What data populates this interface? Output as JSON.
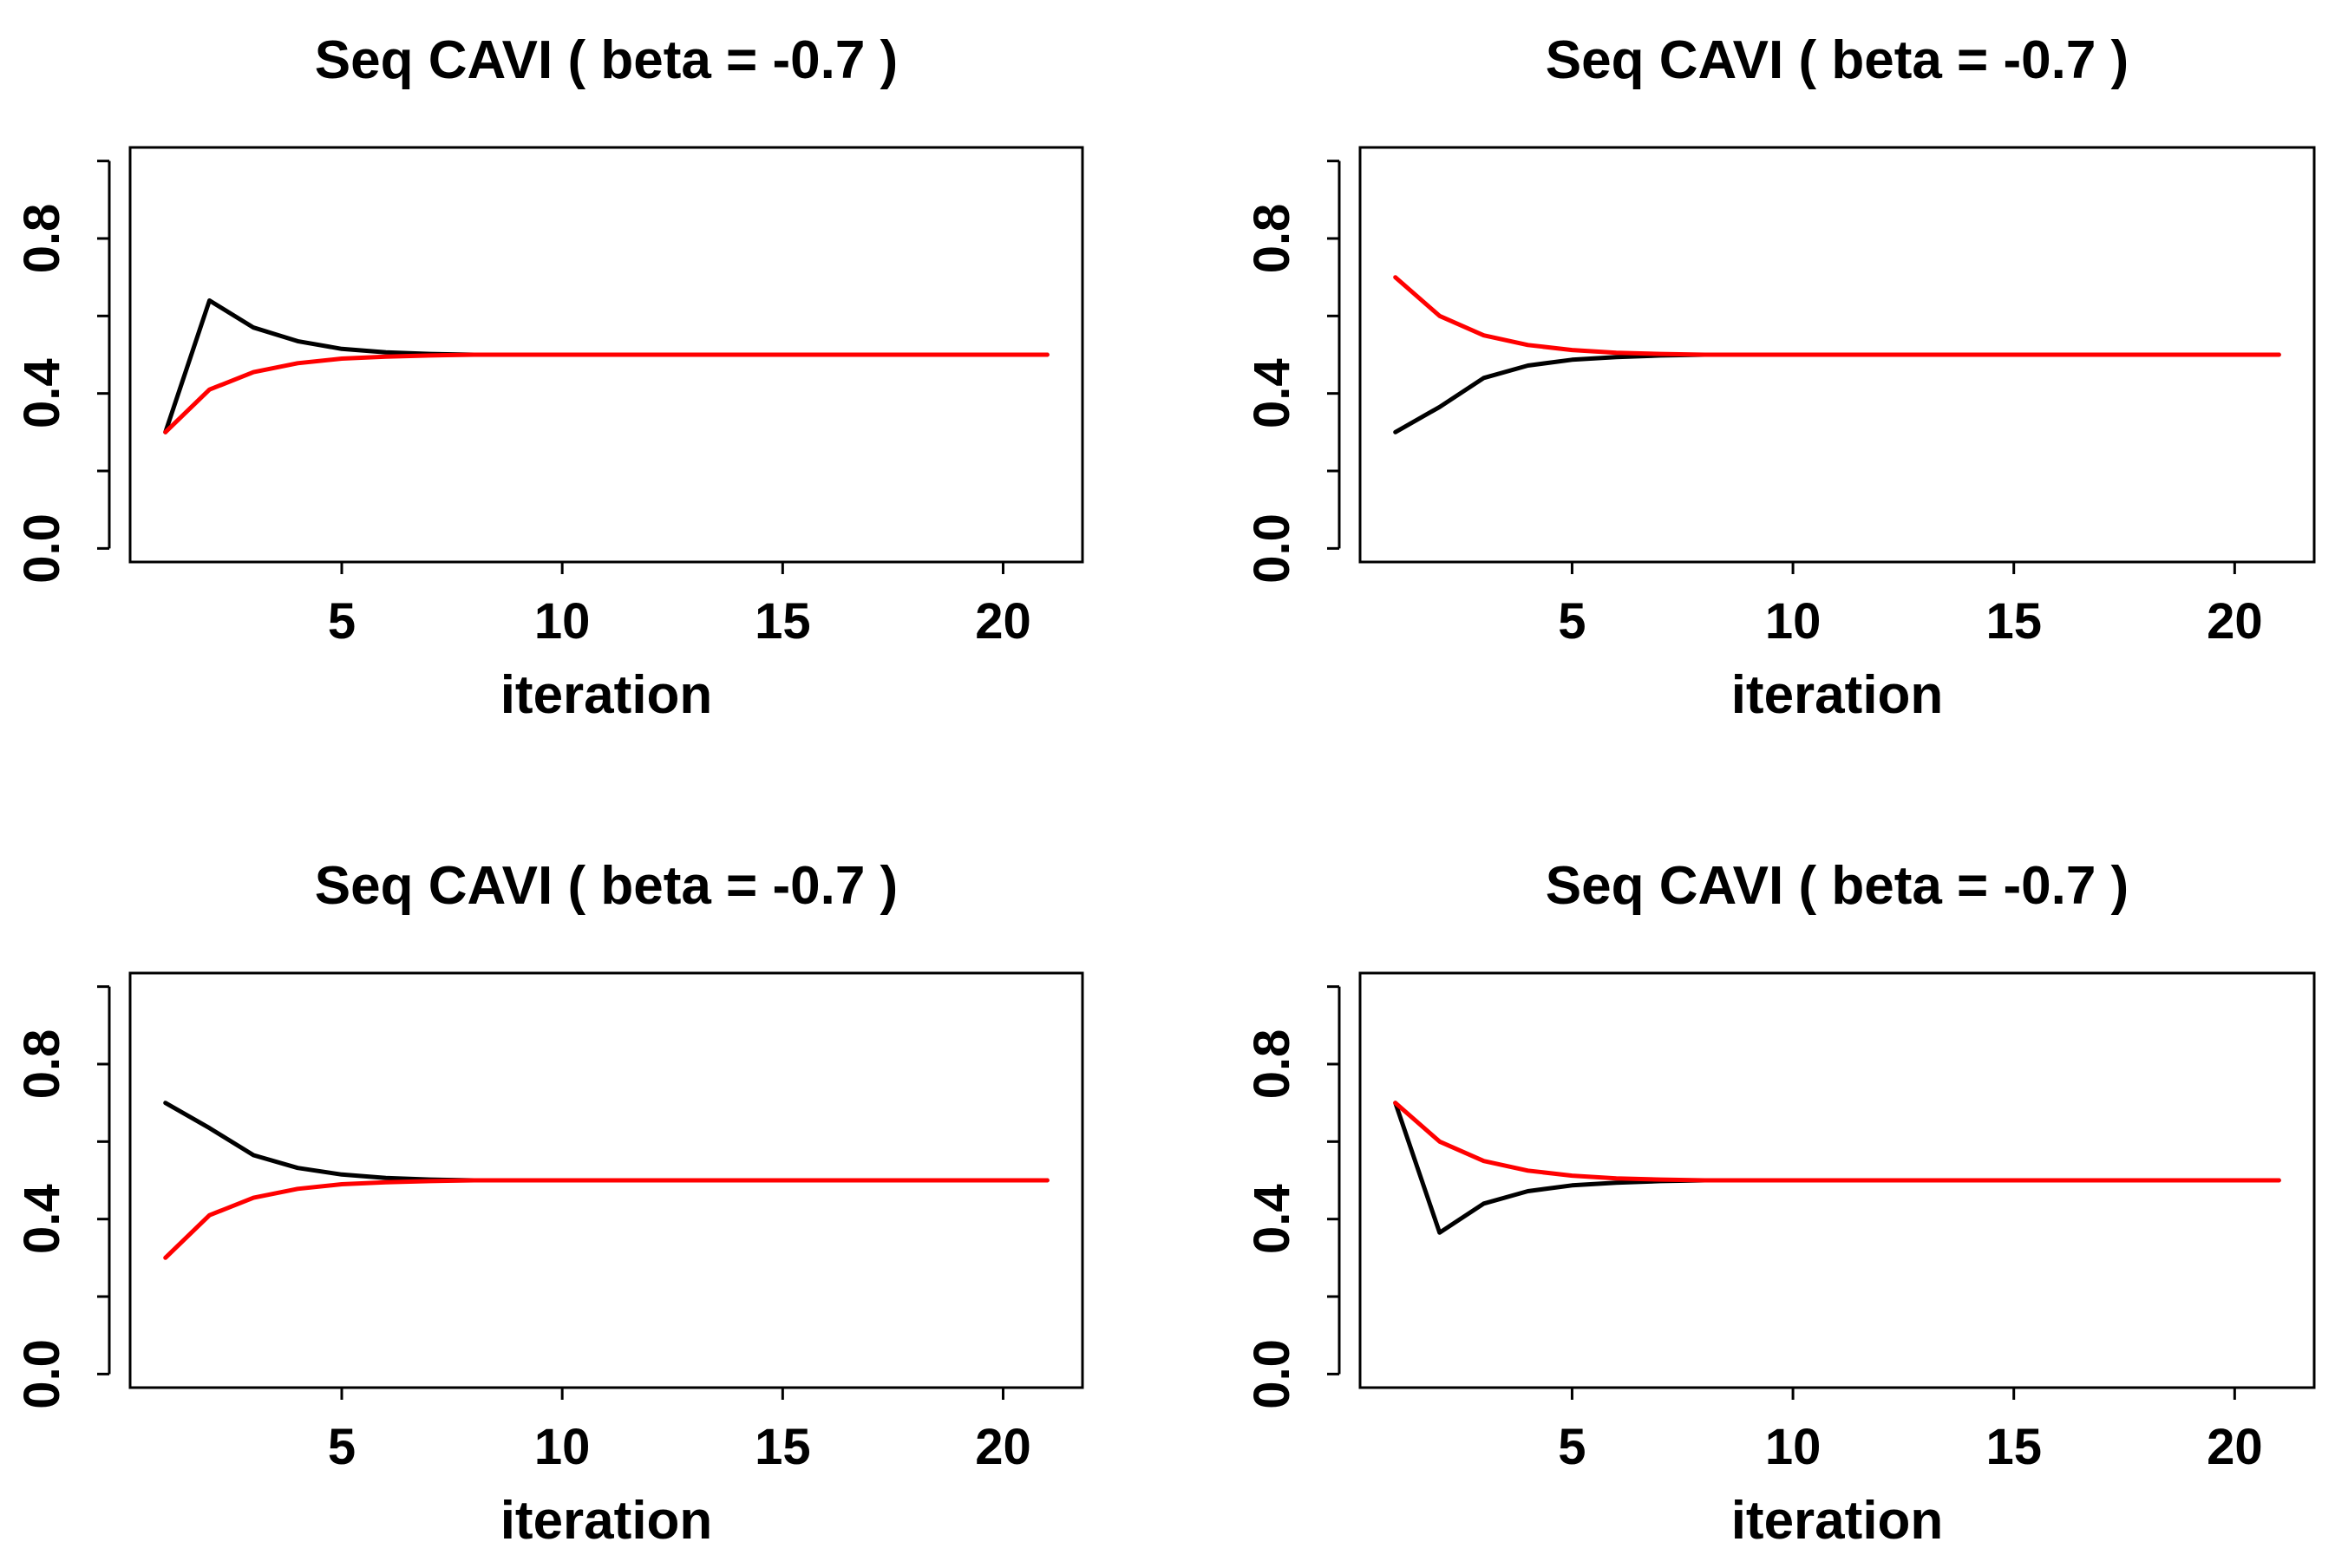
{
  "colors": {
    "black_series": "#000000",
    "red_series": "#ff0000"
  },
  "chart_data": [
    {
      "type": "line",
      "title": "Seq CAVI ( beta =  -0.7 )",
      "xlabel": "iteration",
      "ylabel": "",
      "xlim": [
        0.2,
        21.8
      ],
      "ylim": [
        -0.035,
        1.035
      ],
      "x_ticks": [
        5,
        10,
        15,
        20
      ],
      "x_tick_labels": [
        "5",
        "10",
        "15",
        "20"
      ],
      "y_ticks": [
        0.0,
        0.2,
        0.4,
        0.6,
        0.8,
        1.0
      ],
      "y_tick_labels": [
        "0.0",
        "",
        "0.4",
        "",
        "0.8",
        ""
      ],
      "x": [
        1,
        2,
        3,
        4,
        5,
        6,
        7,
        8,
        9,
        10,
        11,
        12,
        13,
        14,
        15,
        16,
        17,
        18,
        19,
        20,
        21
      ],
      "series": [
        {
          "name": "black",
          "color": "#000000",
          "values": [
            0.3,
            0.64,
            0.57,
            0.535,
            0.515,
            0.506,
            0.502,
            0.5,
            0.5,
            0.5,
            0.5,
            0.5,
            0.5,
            0.5,
            0.5,
            0.5,
            0.5,
            0.5,
            0.5,
            0.5,
            0.5
          ]
        },
        {
          "name": "red",
          "color": "#ff0000",
          "values": [
            0.3,
            0.41,
            0.455,
            0.478,
            0.49,
            0.495,
            0.498,
            0.5,
            0.5,
            0.5,
            0.5,
            0.5,
            0.5,
            0.5,
            0.5,
            0.5,
            0.5,
            0.5,
            0.5,
            0.5,
            0.5
          ]
        }
      ]
    },
    {
      "type": "line",
      "title": "Seq CAVI ( beta =  -0.7 )",
      "xlabel": "iteration",
      "ylabel": "",
      "xlim": [
        0.2,
        21.8
      ],
      "ylim": [
        -0.035,
        1.035
      ],
      "x_ticks": [
        5,
        10,
        15,
        20
      ],
      "x_tick_labels": [
        "5",
        "10",
        "15",
        "20"
      ],
      "y_ticks": [
        0.0,
        0.2,
        0.4,
        0.6,
        0.8,
        1.0
      ],
      "y_tick_labels": [
        "0.0",
        "",
        "0.4",
        "",
        "0.8",
        ""
      ],
      "x": [
        1,
        2,
        3,
        4,
        5,
        6,
        7,
        8,
        9,
        10,
        11,
        12,
        13,
        14,
        15,
        16,
        17,
        18,
        19,
        20,
        21
      ],
      "series": [
        {
          "name": "black",
          "color": "#000000",
          "values": [
            0.3,
            0.365,
            0.44,
            0.472,
            0.487,
            0.494,
            0.498,
            0.5,
            0.5,
            0.5,
            0.5,
            0.5,
            0.5,
            0.5,
            0.5,
            0.5,
            0.5,
            0.5,
            0.5,
            0.5,
            0.5
          ]
        },
        {
          "name": "red",
          "color": "#ff0000",
          "values": [
            0.7,
            0.6,
            0.55,
            0.525,
            0.512,
            0.505,
            0.502,
            0.5,
            0.5,
            0.5,
            0.5,
            0.5,
            0.5,
            0.5,
            0.5,
            0.5,
            0.5,
            0.5,
            0.5,
            0.5,
            0.5
          ]
        }
      ]
    },
    {
      "type": "line",
      "title": "Seq CAVI ( beta =  -0.7 )",
      "xlabel": "iteration",
      "ylabel": "",
      "xlim": [
        0.2,
        21.8
      ],
      "ylim": [
        -0.035,
        1.035
      ],
      "x_ticks": [
        5,
        10,
        15,
        20
      ],
      "x_tick_labels": [
        "5",
        "10",
        "15",
        "20"
      ],
      "y_ticks": [
        0.0,
        0.2,
        0.4,
        0.6,
        0.8,
        1.0
      ],
      "y_tick_labels": [
        "0.0",
        "",
        "0.4",
        "",
        "0.8",
        ""
      ],
      "x": [
        1,
        2,
        3,
        4,
        5,
        6,
        7,
        8,
        9,
        10,
        11,
        12,
        13,
        14,
        15,
        16,
        17,
        18,
        19,
        20,
        21
      ],
      "series": [
        {
          "name": "black",
          "color": "#000000",
          "values": [
            0.7,
            0.635,
            0.565,
            0.532,
            0.515,
            0.506,
            0.502,
            0.5,
            0.5,
            0.5,
            0.5,
            0.5,
            0.5,
            0.5,
            0.5,
            0.5,
            0.5,
            0.5,
            0.5,
            0.5,
            0.5
          ]
        },
        {
          "name": "red",
          "color": "#ff0000",
          "values": [
            0.3,
            0.41,
            0.455,
            0.478,
            0.49,
            0.495,
            0.498,
            0.5,
            0.5,
            0.5,
            0.5,
            0.5,
            0.5,
            0.5,
            0.5,
            0.5,
            0.5,
            0.5,
            0.5,
            0.5,
            0.5
          ]
        }
      ]
    },
    {
      "type": "line",
      "title": "Seq CAVI ( beta =  -0.7 )",
      "xlabel": "iteration",
      "ylabel": "",
      "xlim": [
        0.2,
        21.8
      ],
      "ylim": [
        -0.035,
        1.035
      ],
      "x_ticks": [
        5,
        10,
        15,
        20
      ],
      "x_tick_labels": [
        "5",
        "10",
        "15",
        "20"
      ],
      "y_ticks": [
        0.0,
        0.2,
        0.4,
        0.6,
        0.8,
        1.0
      ],
      "y_tick_labels": [
        "0.0",
        "",
        "0.4",
        "",
        "0.8",
        ""
      ],
      "x": [
        1,
        2,
        3,
        4,
        5,
        6,
        7,
        8,
        9,
        10,
        11,
        12,
        13,
        14,
        15,
        16,
        17,
        18,
        19,
        20,
        21
      ],
      "series": [
        {
          "name": "black",
          "color": "#000000",
          "values": [
            0.7,
            0.365,
            0.44,
            0.472,
            0.487,
            0.494,
            0.498,
            0.5,
            0.5,
            0.5,
            0.5,
            0.5,
            0.5,
            0.5,
            0.5,
            0.5,
            0.5,
            0.5,
            0.5,
            0.5,
            0.5
          ]
        },
        {
          "name": "red",
          "color": "#ff0000",
          "values": [
            0.7,
            0.6,
            0.55,
            0.525,
            0.512,
            0.505,
            0.502,
            0.5,
            0.5,
            0.5,
            0.5,
            0.5,
            0.5,
            0.5,
            0.5,
            0.5,
            0.5,
            0.5,
            0.5,
            0.5,
            0.5
          ]
        }
      ]
    }
  ]
}
